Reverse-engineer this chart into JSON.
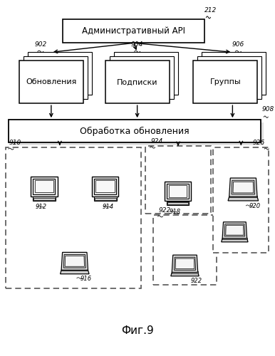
{
  "bg_color": "#ffffff",
  "line_color": "#000000",
  "box_fill": "#ffffff",
  "labels": {
    "api": "Административный API",
    "updates": "Обновления",
    "subscriptions": "Подписки",
    "groups": "Группы",
    "processing": "Обработка обновления",
    "fig": "Фиг.9"
  },
  "numbers": {
    "api": "212",
    "updates": "902",
    "subscriptions": "904",
    "groups": "906",
    "processing": "908",
    "group1": "910",
    "group2": "924",
    "group3": "926",
    "dev912": "912",
    "dev914": "914",
    "dev916": "916",
    "dev918": "918",
    "dev920": "920",
    "dev922": "922"
  },
  "figsize": [
    3.86,
    5.0
  ],
  "dpi": 100
}
